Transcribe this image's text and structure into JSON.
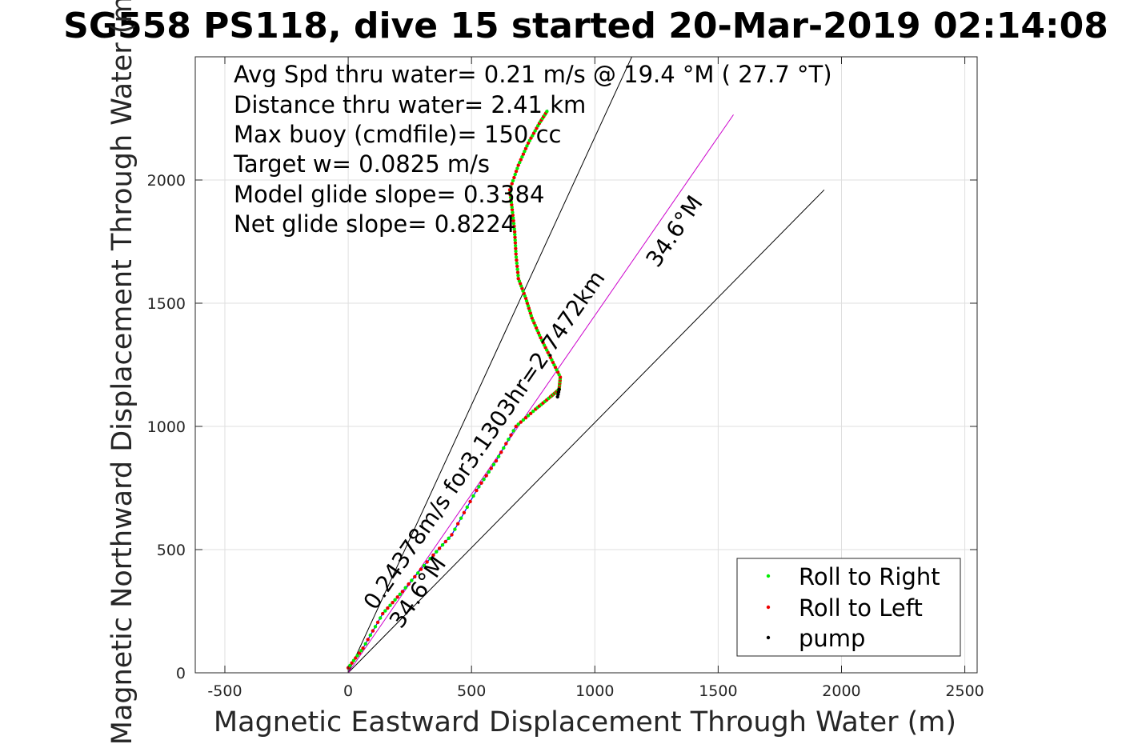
{
  "chart_data": {
    "type": "line",
    "title": "SG558 PS118, dive 15 started 20-Mar-2019 02:14:08",
    "xlabel": "Magnetic Eastward Displacement Through Water (m)",
    "ylabel": "Magnetic Northward Displacement Through Water (m)",
    "xlim": [
      -620,
      2550
    ],
    "ylim": [
      0,
      2500
    ],
    "xticks": [
      -500,
      0,
      500,
      1000,
      1500,
      2000,
      2500
    ],
    "yticks": [
      0,
      500,
      1000,
      1500,
      2000
    ],
    "grid": true,
    "info_lines": [
      "Avg Spd thru water=  0.21 m/s @  19.4 °M ( 27.7 °T)",
      "Distance thru water=  2.41 km",
      "Max buoy (cmdfile)= 150 cc",
      "Target w= 0.0825 m/s",
      "Model glide slope= 0.3384",
      "Net glide slope= 0.8224"
    ],
    "annotations": [
      {
        "text": "0.24378m/s for3.1303hr=2.7472km",
        "x": 110,
        "y": 250,
        "angle_deg": 55.4
      },
      {
        "text": "34.6°M",
        "x": 1255,
        "y": 1640,
        "angle_deg": 55.4
      },
      {
        "text": "34.6°M",
        "x": 215,
        "y": 175,
        "angle_deg": 55.4
      }
    ],
    "series": [
      {
        "name": "cone_upper",
        "color": "#000000",
        "points": [
          [
            0,
            0
          ],
          [
            1150,
            2500
          ]
        ]
      },
      {
        "name": "cone_lower",
        "color": "#000000",
        "points": [
          [
            0,
            0
          ],
          [
            1930,
            1960
          ]
        ]
      },
      {
        "name": "heading_34.6M",
        "color": "#cc00cc",
        "points": [
          [
            0,
            0
          ],
          [
            1562,
            2265
          ]
        ]
      },
      {
        "name": "track_descent",
        "color": "#0000ff",
        "points": [
          [
            0,
            20
          ],
          [
            60,
            100
          ],
          [
            140,
            240
          ],
          [
            220,
            330
          ],
          [
            320,
            450
          ],
          [
            420,
            560
          ],
          [
            520,
            740
          ],
          [
            600,
            860
          ],
          [
            680,
            1000
          ],
          [
            760,
            1070
          ],
          [
            820,
            1120
          ],
          [
            855,
            1150
          ]
        ]
      },
      {
        "name": "track_ascent",
        "color": "#0000ff",
        "points": [
          [
            855,
            1150
          ],
          [
            860,
            1200
          ],
          [
            820,
            1280
          ],
          [
            780,
            1360
          ],
          [
            745,
            1440
          ],
          [
            720,
            1520
          ],
          [
            690,
            1600
          ],
          [
            680,
            1700
          ],
          [
            675,
            1790
          ],
          [
            665,
            1880
          ],
          [
            655,
            1960
          ],
          [
            690,
            2060
          ],
          [
            730,
            2150
          ],
          [
            775,
            2230
          ],
          [
            810,
            2285
          ]
        ]
      }
    ],
    "legend": {
      "location": "bottom-right",
      "entries": [
        {
          "label": "Roll to Right",
          "color": "#00ee00"
        },
        {
          "label": "Roll to Left",
          "color": "#ee0000"
        },
        {
          "label": "pump",
          "color": "#000000"
        }
      ]
    }
  }
}
